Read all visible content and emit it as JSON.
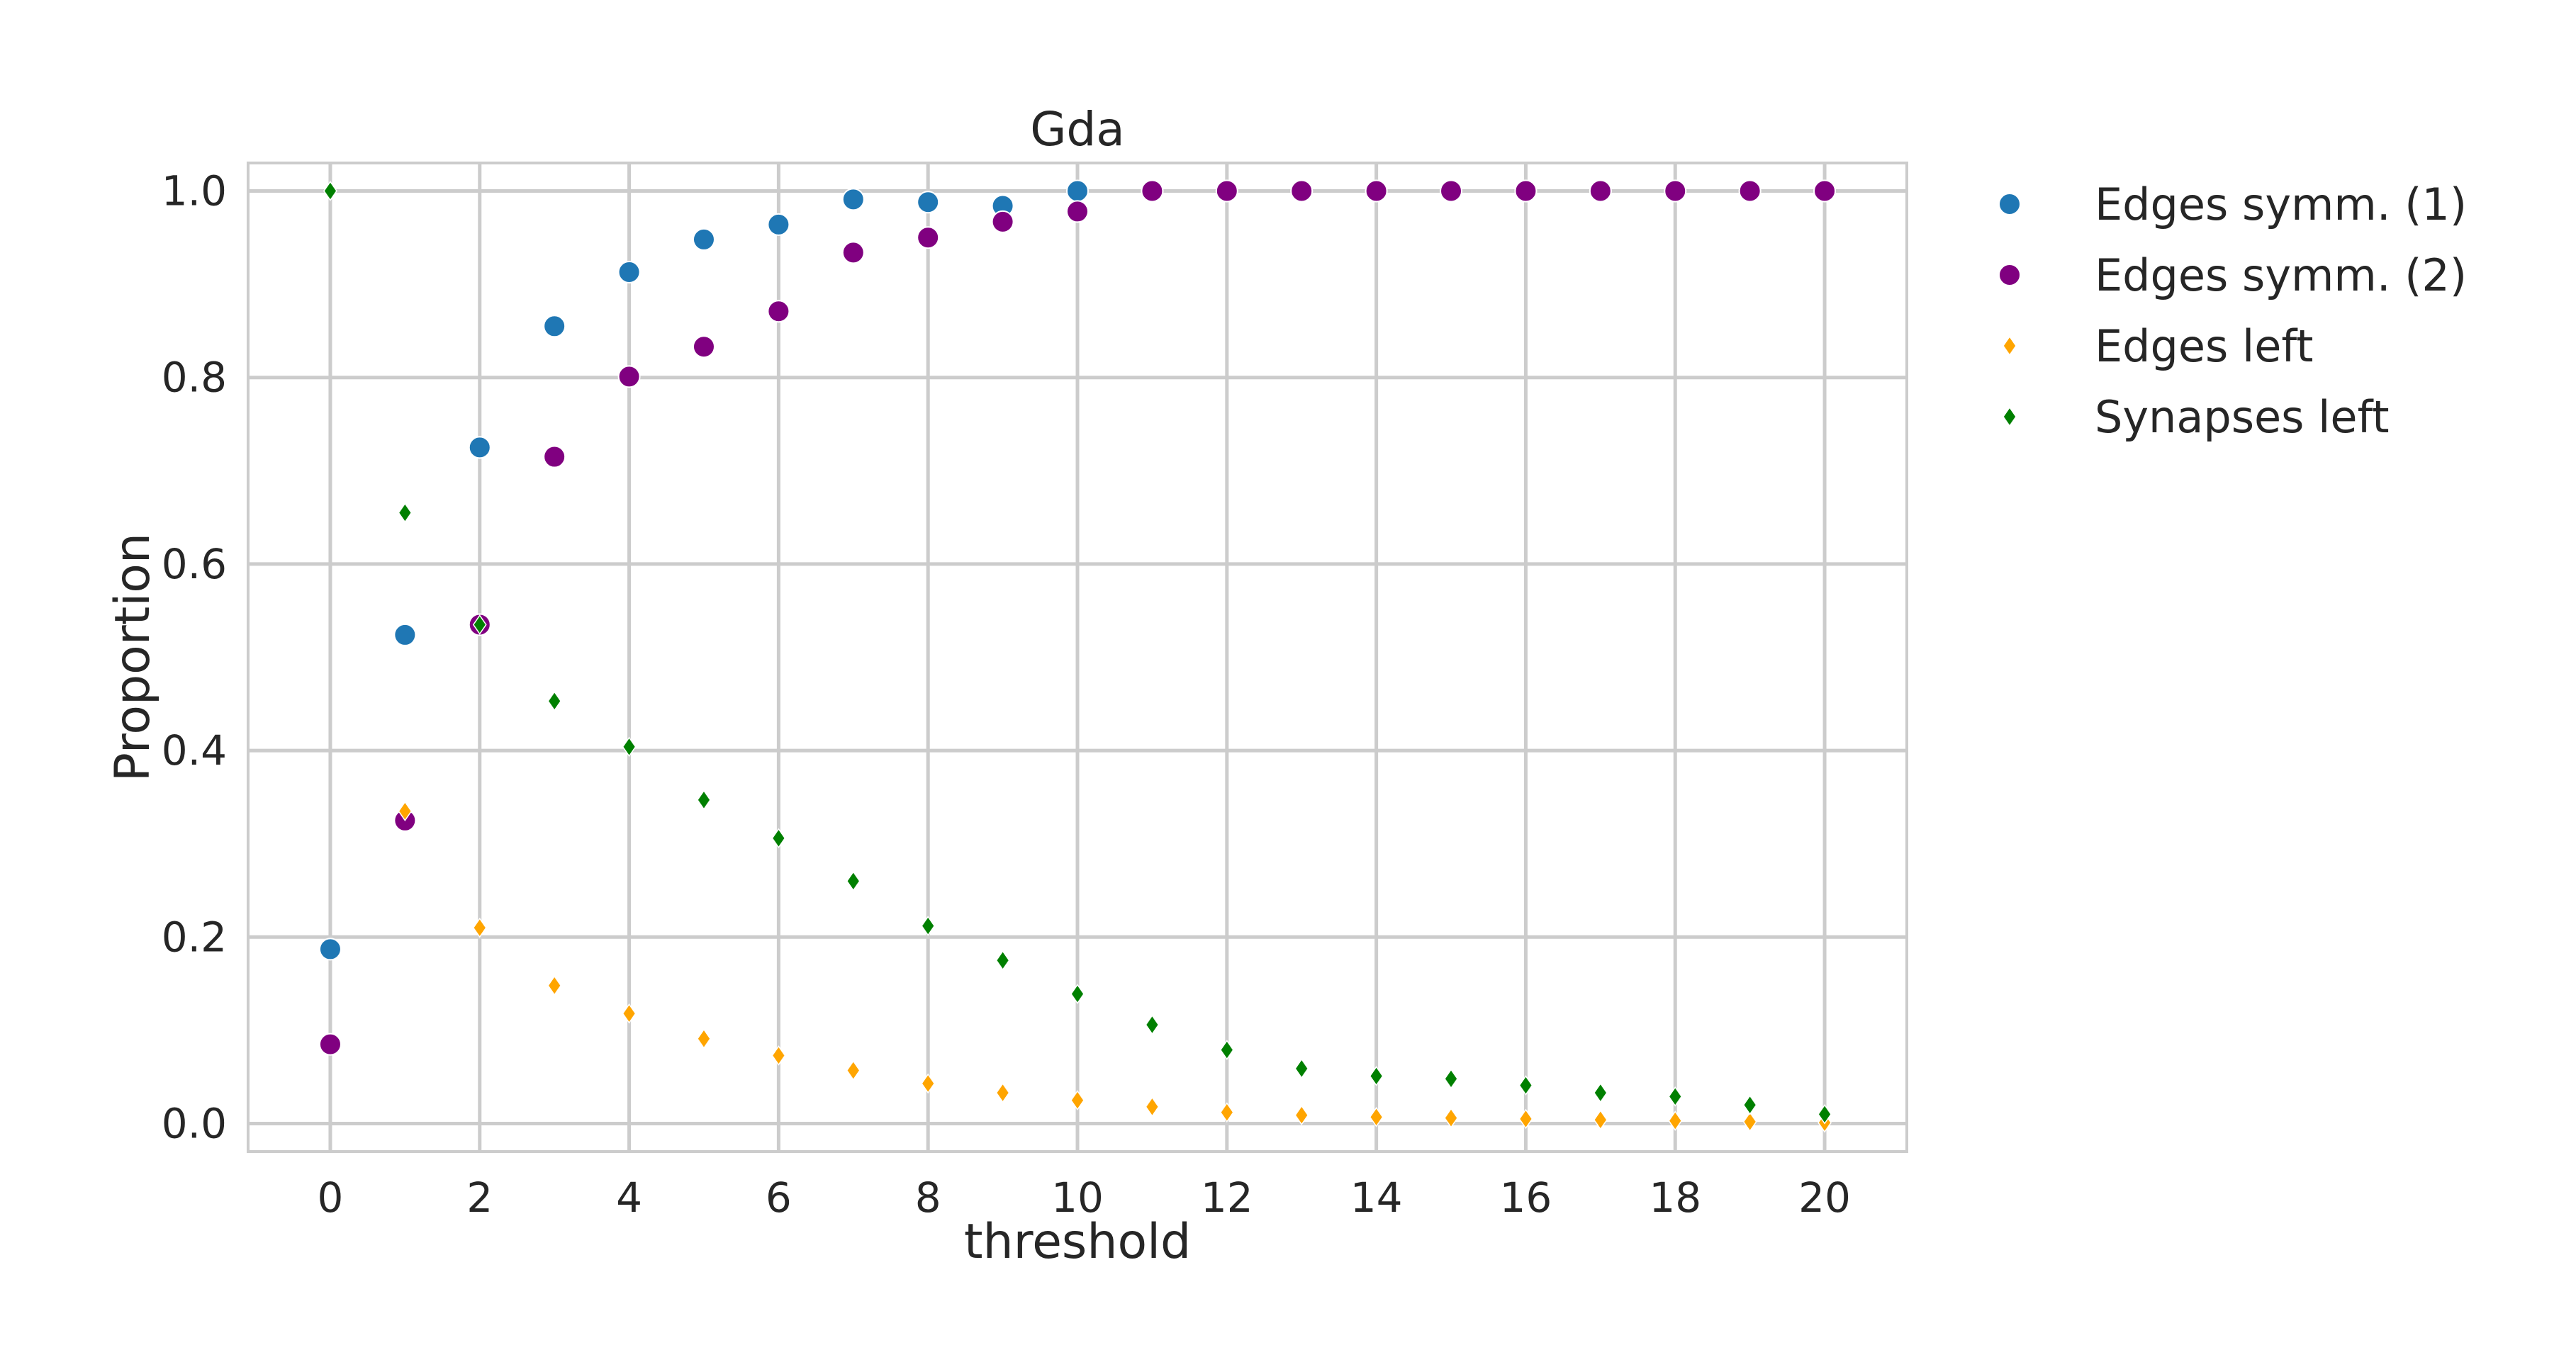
{
  "chart_data": {
    "type": "scatter",
    "title": "Gda",
    "xlabel": "threshold",
    "ylabel": "Proportion",
    "xlim": [
      -1.1,
      21.1
    ],
    "ylim": [
      -0.03,
      1.03
    ],
    "xticks": [
      0,
      2,
      4,
      6,
      8,
      10,
      12,
      14,
      16,
      18,
      20
    ],
    "yticks": [
      0.0,
      0.2,
      0.4,
      0.6,
      0.8,
      1.0
    ],
    "xtick_labels": [
      "0",
      "2",
      "4",
      "6",
      "8",
      "10",
      "12",
      "14",
      "16",
      "18",
      "20"
    ],
    "ytick_labels": [
      "0.0",
      "0.2",
      "0.4",
      "0.6",
      "0.8",
      "1.0"
    ],
    "grid": true,
    "legend_placement": "outside right, top",
    "x": [
      0,
      1,
      2,
      3,
      4,
      5,
      6,
      7,
      8,
      9,
      10,
      11,
      12,
      13,
      14,
      15,
      16,
      17,
      18,
      19,
      20
    ],
    "series": [
      {
        "name": "Edges symm. (1)",
        "marker": "circle",
        "color": "#1f77b4",
        "values": [
          0.187,
          0.524,
          0.725,
          0.855,
          0.913,
          0.948,
          0.964,
          0.991,
          0.988,
          0.984,
          1.0,
          1.0,
          1.0,
          1.0,
          1.0,
          1.0,
          1.0,
          1.0,
          1.0,
          1.0,
          1.0
        ]
      },
      {
        "name": "Edges symm. (2)",
        "marker": "circle",
        "color": "#800080",
        "values": [
          0.085,
          0.325,
          0.535,
          0.715,
          0.801,
          0.833,
          0.871,
          0.934,
          0.95,
          0.967,
          0.978,
          1.0,
          1.0,
          1.0,
          1.0,
          1.0,
          1.0,
          1.0,
          1.0,
          1.0,
          1.0
        ]
      },
      {
        "name": "Edges left",
        "marker": "diamond",
        "color": "#ffa500",
        "values": [
          1.0,
          0.335,
          0.21,
          0.148,
          0.118,
          0.091,
          0.073,
          0.057,
          0.043,
          0.033,
          0.025,
          0.018,
          0.012,
          0.009,
          0.007,
          0.006,
          0.005,
          0.004,
          0.003,
          0.002,
          0.001
        ]
      },
      {
        "name": "Synapses left",
        "marker": "diamond",
        "color": "#008000",
        "values": [
          1.0,
          0.655,
          0.535,
          0.453,
          0.404,
          0.347,
          0.306,
          0.26,
          0.212,
          0.175,
          0.139,
          0.106,
          0.079,
          0.059,
          0.051,
          0.048,
          0.041,
          0.033,
          0.029,
          0.02,
          0.01
        ]
      }
    ]
  }
}
